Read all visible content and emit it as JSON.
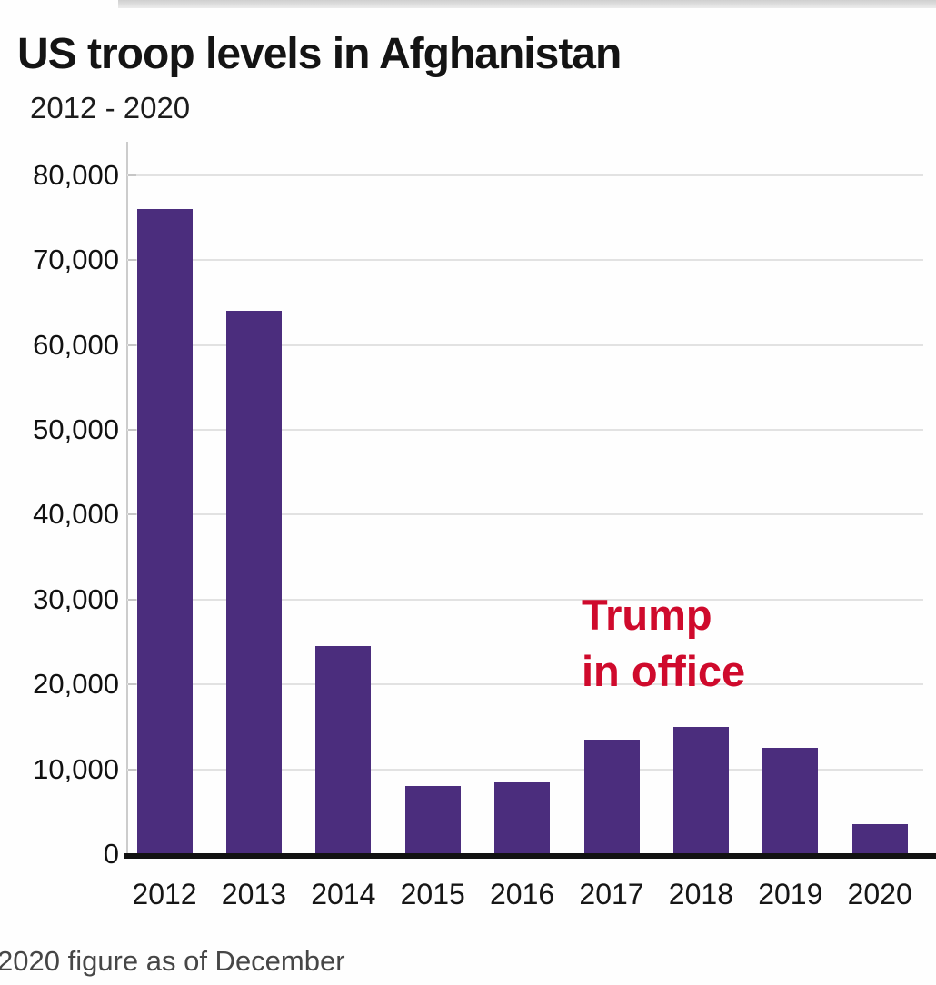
{
  "chart_data": {
    "type": "bar",
    "title": "US troop levels in Afghanistan",
    "subtitle": "2012 - 2020",
    "footnote": "2020 figure as of December",
    "categories": [
      "2012",
      "2013",
      "2014",
      "2015",
      "2016",
      "2017",
      "2018",
      "2019",
      "2020"
    ],
    "values": [
      76000,
      64000,
      24500,
      8000,
      8500,
      13500,
      15000,
      12500,
      3500
    ],
    "xlabel": "",
    "ylabel": "",
    "ylim": [
      0,
      80000
    ],
    "ytick_step": 10000,
    "ytick_labels": [
      "0",
      "10,000",
      "20,000",
      "30,000",
      "40,000",
      "50,000",
      "60,000",
      "70,000",
      "80,000"
    ],
    "grid": "horizontal gridlines on",
    "legend": "none",
    "bar_color": "#4b2d7d",
    "annotation": {
      "line1": "Trump",
      "line2": "in office",
      "color": "#cf0a2c",
      "position": "above the 2017-2018 bars"
    }
  }
}
